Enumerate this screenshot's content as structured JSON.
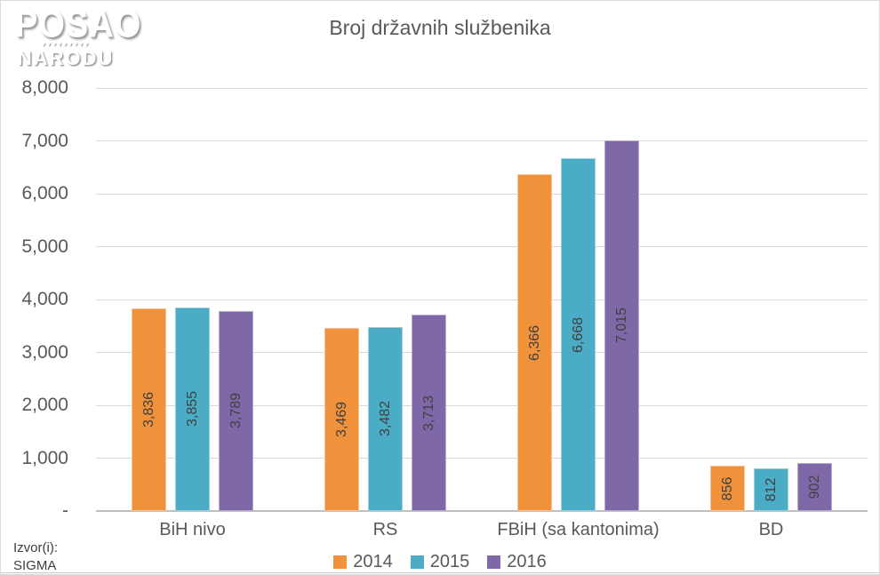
{
  "logo": {
    "line1": "POSAO",
    "separator": "▾▾▾▾▾▾▾▾▾",
    "line2": "NARODU"
  },
  "chart_data": {
    "type": "bar",
    "title": "Broj državnih službenika",
    "categories": [
      "BiH nivo",
      "RS",
      "FBiH (sa kantonima)",
      "BD"
    ],
    "series": [
      {
        "name": "2014",
        "color": "#F0913C",
        "values": [
          3836,
          3469,
          6366,
          856
        ],
        "labels": [
          "3,836",
          "3,469",
          "6,366",
          "856"
        ]
      },
      {
        "name": "2015",
        "color": "#4AACC5",
        "values": [
          3855,
          3482,
          6668,
          812
        ],
        "labels": [
          "3,855",
          "3,482",
          "6,668",
          "812"
        ]
      },
      {
        "name": "2016",
        "color": "#7E68A8",
        "values": [
          3789,
          3713,
          7015,
          902
        ],
        "labels": [
          "3,789",
          "3,713",
          "7,015",
          "902"
        ]
      }
    ],
    "ylim": [
      0,
      8000
    ],
    "ytick_labels": [
      "-",
      "1,000",
      "2,000",
      "3,000",
      "4,000",
      "5,000",
      "6,000",
      "7,000",
      "8,000"
    ],
    "grid": true,
    "legend_position": "bottom",
    "colors": {
      "grid": "#D9D9D9",
      "axis_line": "#BFBFBF",
      "axis_text": "#595959",
      "bar_label_text": "#404040"
    }
  },
  "source": {
    "label": "Izvor(i):",
    "value": "SIGMA"
  }
}
